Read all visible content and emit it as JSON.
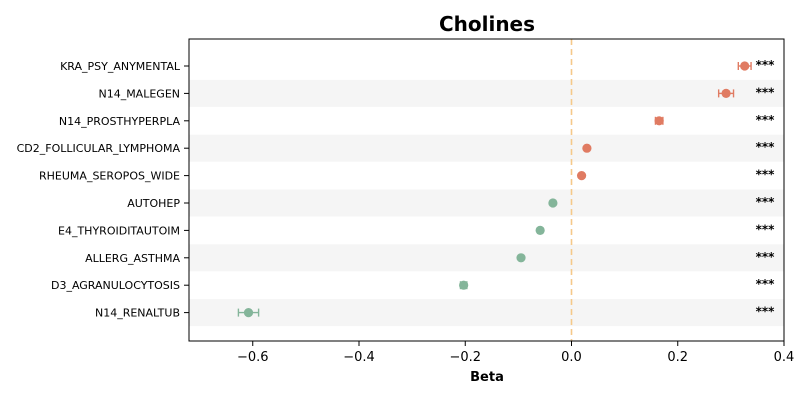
{
  "chart_data": {
    "type": "scatter",
    "title": "Cholines",
    "xlabel": "Beta",
    "ylabel": "",
    "xlim": [
      -0.72,
      0.4
    ],
    "xticks": [
      -0.6,
      -0.4,
      -0.2,
      0.0,
      0.2,
      0.4
    ],
    "xtick_labels": [
      "−0.6",
      "−0.4",
      "−0.2",
      "0.0",
      "0.2",
      "0.4"
    ],
    "reference_line_x": 0,
    "colors": {
      "positive": "#e07b62",
      "negative": "#84b59a",
      "reference": "#f5c98a",
      "band": "#f5f5f5"
    },
    "points": [
      {
        "label": "KRA_PSY_ANYMENTAL",
        "beta": 0.326,
        "ci_low": 0.314,
        "ci_high": 0.338,
        "sig": "***"
      },
      {
        "label": "N14_MALEGEN",
        "beta": 0.291,
        "ci_low": 0.277,
        "ci_high": 0.305,
        "sig": "***"
      },
      {
        "label": "N14_PROSTHYPERPLA",
        "beta": 0.165,
        "ci_low": 0.158,
        "ci_high": 0.172,
        "sig": "***"
      },
      {
        "label": "CD2_FOLLICULAR_LYMPHOMA",
        "beta": 0.029,
        "ci_low": 0.026,
        "ci_high": 0.032,
        "sig": "***"
      },
      {
        "label": "RHEUMA_SEROPOS_WIDE",
        "beta": 0.019,
        "ci_low": 0.016,
        "ci_high": 0.022,
        "sig": "***"
      },
      {
        "label": "AUTOHEP",
        "beta": -0.035,
        "ci_low": -0.038,
        "ci_high": -0.032,
        "sig": "***"
      },
      {
        "label": "E4_THYROIDITAUTOIM",
        "beta": -0.059,
        "ci_low": -0.062,
        "ci_high": -0.056,
        "sig": "***"
      },
      {
        "label": "ALLERG_ASTHMA",
        "beta": -0.095,
        "ci_low": -0.098,
        "ci_high": -0.092,
        "sig": "***"
      },
      {
        "label": "D3_AGRANULOCYTOSIS",
        "beta": -0.203,
        "ci_low": -0.209,
        "ci_high": -0.197,
        "sig": "***"
      },
      {
        "label": "N14_RENALTUB",
        "beta": -0.608,
        "ci_low": -0.627,
        "ci_high": -0.589,
        "sig": "***"
      }
    ]
  }
}
